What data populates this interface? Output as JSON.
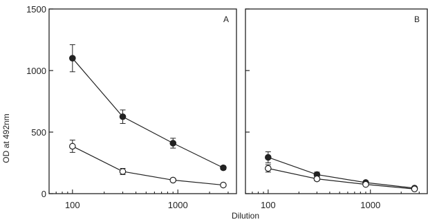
{
  "chart_data": [
    {
      "type": "line",
      "panel_label": "A",
      "xlabel": "Dilution",
      "ylabel": "OD at 492nm",
      "x_scale": "log",
      "xlim": [
        60,
        3600
      ],
      "ylim": [
        0,
        1500
      ],
      "x": [
        100,
        300,
        900,
        2700
      ],
      "xticks": [
        100,
        1000
      ],
      "yticks": [
        0,
        500,
        1000,
        1500
      ],
      "series": [
        {
          "marker": "filled-circle",
          "values": [
            1100,
            625,
            410,
            210
          ],
          "errors": [
            110,
            55,
            40,
            15
          ]
        },
        {
          "marker": "open-circle",
          "values": [
            385,
            180,
            110,
            70
          ],
          "errors": [
            50,
            25,
            12,
            8
          ]
        }
      ]
    },
    {
      "type": "line",
      "panel_label": "B",
      "xlabel": "Dilution",
      "ylabel": "OD at 492nm",
      "x_scale": "log",
      "xlim": [
        60,
        3600
      ],
      "ylim": [
        0,
        1500
      ],
      "x": [
        100,
        300,
        900,
        2700
      ],
      "xticks": [
        100,
        1000
      ],
      "yticks": [
        0,
        500,
        1000,
        1500
      ],
      "series": [
        {
          "marker": "filled-circle",
          "values": [
            295,
            155,
            90,
            45
          ],
          "errors": [
            45,
            20,
            12,
            6
          ]
        },
        {
          "marker": "open-circle",
          "values": [
            205,
            120,
            75,
            38
          ],
          "errors": [
            30,
            15,
            10,
            6
          ]
        }
      ]
    }
  ],
  "colors": {
    "ink": "#222222",
    "background": "#ffffff"
  }
}
